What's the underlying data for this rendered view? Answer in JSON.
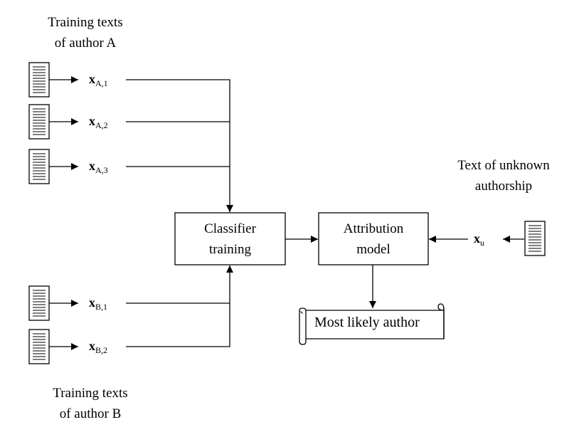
{
  "labels": {
    "author_a": [
      "Training texts",
      "of author A"
    ],
    "author_b": [
      "Training texts",
      "of author B"
    ],
    "unknown": [
      "Text of unknown",
      "authorship"
    ]
  },
  "boxes": {
    "classifier": [
      "Classifier",
      "training"
    ],
    "attribution": [
      "Attribution",
      "model"
    ]
  },
  "output": "Most likely author",
  "vectors": {
    "a1": {
      "base": "x",
      "sub": "A,1"
    },
    "a2": {
      "base": "x",
      "sub": "A,2"
    },
    "a3": {
      "base": "x",
      "sub": "A,3"
    },
    "b1": {
      "base": "x",
      "sub": "B,1"
    },
    "b2": {
      "base": "x",
      "sub": "B,2"
    },
    "u": {
      "base": "x",
      "sub": "u"
    }
  },
  "icons": {
    "document": "document-icon",
    "scroll": "scroll-icon"
  }
}
